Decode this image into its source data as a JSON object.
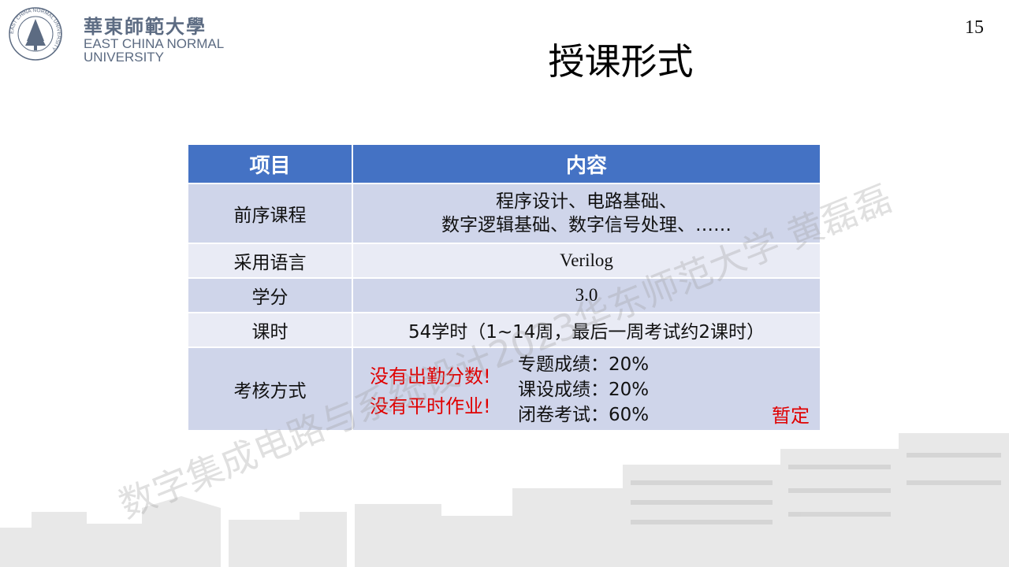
{
  "header": {
    "logo_cn": "華東師範大學",
    "logo_en_line1": "EAST CHINA NORMAL",
    "logo_en_line2": "UNIVERSITY",
    "logo_seal_text": "EAST CHINA NORMAL UNIVERSITY",
    "page_number": "15"
  },
  "title": "授课形式",
  "table": {
    "headers": [
      "项目",
      "内容"
    ],
    "rows": [
      {
        "item": "前序课程",
        "line1": "程序设计、电路基础、",
        "line2": "数字逻辑基础、数字信号处理、……"
      },
      {
        "item": "采用语言",
        "content": "Verilog"
      },
      {
        "item": "学分",
        "content": "3.0"
      },
      {
        "item": "课时",
        "content": "54学时（1~14周，最后一周考试约2课时）"
      }
    ],
    "assessment": {
      "item": "考核方式",
      "notes": [
        "没有出勤分数!",
        "没有平时作业!"
      ],
      "components": [
        "专题成绩：20%",
        "课设成绩：20%",
        "闭卷考试：60%"
      ],
      "tentative": "暂定"
    }
  },
  "watermark": "数字集成电路与系统设计2023华东师范大学 黄磊磊",
  "colors": {
    "header_bg": "#4472c4",
    "row_dark": "#cfd5ea",
    "row_light": "#e9ebf5",
    "emphasis": "#e00000",
    "logo": "#5c6b82"
  }
}
